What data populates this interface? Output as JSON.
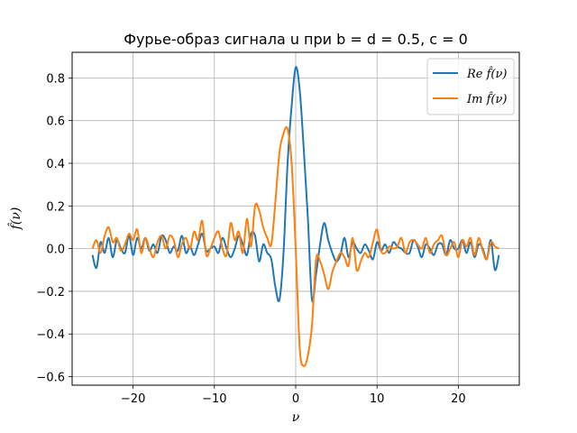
{
  "chart_data": {
    "type": "line",
    "title": "Фурье-образ сигнала u при b = d = 0.5, c = 0",
    "xlabel": "ν",
    "ylabel": "f̂(ν)",
    "xlim": [
      -27.5,
      27.5
    ],
    "ylim": [
      -0.64,
      0.92
    ],
    "xticks": [
      -20,
      -10,
      0,
      10,
      20
    ],
    "xtick_labels": [
      "−20",
      "−10",
      "0",
      "10",
      "20"
    ],
    "yticks": [
      -0.6,
      -0.4,
      -0.2,
      0.0,
      0.2,
      0.4,
      0.6,
      0.8
    ],
    "ytick_labels": [
      "−0.6",
      "−0.4",
      "−0.2",
      "0.0",
      "0.2",
      "0.4",
      "0.6",
      "0.8"
    ],
    "grid": true,
    "legend_position": "top-right",
    "series": [
      {
        "name": "Re f̂(ν)",
        "color": "#1f77b4",
        "x": [
          -25,
          -24.5,
          -24,
          -23.5,
          -23,
          -22.5,
          -22,
          -21.5,
          -21,
          -20.5,
          -20,
          -19.5,
          -19,
          -18.5,
          -18,
          -17.5,
          -17,
          -16.5,
          -16,
          -15.5,
          -15,
          -14.5,
          -14,
          -13.5,
          -13,
          -12.5,
          -12,
          -11.5,
          -11,
          -10.5,
          -10,
          -9.5,
          -9,
          -8.5,
          -8,
          -7.5,
          -7,
          -6.5,
          -6,
          -5.5,
          -5,
          -4.5,
          -4,
          -3.5,
          -3,
          -2.5,
          -2,
          -1.5,
          -1,
          -0.5,
          0,
          0.5,
          1,
          1.5,
          2,
          2.5,
          3,
          3.5,
          4,
          4.5,
          5,
          5.5,
          6,
          6.5,
          7,
          7.5,
          8,
          8.5,
          9,
          9.5,
          10,
          10.5,
          11,
          11.5,
          12,
          12.5,
          13,
          13.5,
          14,
          14.5,
          15,
          15.5,
          16,
          16.5,
          17,
          17.5,
          18,
          18.5,
          19,
          19.5,
          20,
          20.5,
          21,
          21.5,
          22,
          22.5,
          23,
          23.5,
          24,
          24.5,
          25
        ],
        "values": [
          -0.03,
          -0.09,
          0.03,
          -0.02,
          0.05,
          -0.04,
          0.04,
          0.0,
          -0.02,
          0.06,
          -0.03,
          0.05,
          0.0,
          0.05,
          -0.01,
          0.02,
          -0.02,
          0.06,
          0.04,
          -0.02,
          0.01,
          -0.01,
          0.06,
          -0.02,
          0.01,
          -0.03,
          0.02,
          0.07,
          -0.01,
          0.0,
          0.01,
          -0.02,
          0.05,
          0.0,
          -0.04,
          0.0,
          0.06,
          0.02,
          -0.03,
          0.07,
          0.06,
          -0.06,
          0.02,
          -0.02,
          -0.05,
          -0.18,
          -0.24,
          -0.02,
          0.4,
          0.67,
          0.85,
          0.74,
          0.46,
          0.14,
          -0.24,
          -0.12,
          0.02,
          0.12,
          0.04,
          -0.02,
          -0.06,
          -0.03,
          0.05,
          -0.04,
          0.03,
          0.0,
          -0.02,
          0.02,
          -0.01,
          -0.05,
          0.03,
          -0.01,
          0.02,
          -0.02,
          0.03,
          0.01,
          0.0,
          -0.02,
          -0.02,
          0.04,
          0.01,
          -0.04,
          0.02,
          0.0,
          -0.03,
          0.02,
          0.02,
          -0.03,
          0.04,
          0.0,
          0.0,
          0.04,
          -0.02,
          0.03,
          -0.04,
          0.02,
          0.0,
          -0.05,
          0.04,
          -0.1,
          -0.03
        ]
      },
      {
        "name": "Im f̂(ν)",
        "color": "#ff7f0e",
        "x": [
          -25,
          -24.5,
          -24,
          -23.5,
          -23,
          -22.5,
          -22,
          -21.5,
          -21,
          -20.5,
          -20,
          -19.5,
          -19,
          -18.5,
          -18,
          -17.5,
          -17,
          -16.5,
          -16,
          -15.5,
          -15,
          -14.5,
          -14,
          -13.5,
          -13,
          -12.5,
          -12,
          -11.5,
          -11,
          -10.5,
          -10,
          -9.5,
          -9,
          -8.5,
          -8,
          -7.5,
          -7,
          -6.5,
          -6,
          -5.5,
          -5,
          -4.5,
          -4,
          -3.5,
          -3,
          -2.5,
          -2,
          -1.5,
          -1,
          -0.5,
          0,
          0.5,
          1,
          1.5,
          2,
          2.5,
          3,
          3.5,
          4,
          4.5,
          5,
          5.5,
          6,
          6.5,
          7,
          7.5,
          8,
          8.5,
          9,
          9.5,
          10,
          10.5,
          11,
          11.5,
          12,
          12.5,
          13,
          13.5,
          14,
          14.5,
          15,
          15.5,
          16,
          16.5,
          17,
          17.5,
          18,
          18.5,
          19,
          19.5,
          20,
          20.5,
          21,
          21.5,
          22,
          22.5,
          23,
          23.5,
          24,
          24.5,
          25
        ],
        "values": [
          0.0,
          0.04,
          -0.02,
          0.06,
          0.1,
          0.03,
          0.05,
          -0.01,
          0.02,
          0.07,
          0.04,
          0.09,
          -0.02,
          0.05,
          0.0,
          -0.04,
          0.03,
          0.06,
          0.0,
          0.06,
          0.04,
          -0.04,
          0.02,
          0.05,
          0.0,
          0.08,
          0.04,
          0.13,
          -0.03,
          0.0,
          0.05,
          0.08,
          0.0,
          -0.03,
          0.12,
          0.04,
          0.08,
          -0.02,
          0.14,
          0.01,
          0.2,
          0.18,
          0.1,
          0.05,
          0.02,
          0.22,
          0.45,
          0.54,
          0.56,
          0.4,
          0.0,
          -0.47,
          -0.55,
          -0.5,
          -0.36,
          -0.05,
          -0.06,
          -0.12,
          -0.19,
          -0.11,
          -0.06,
          -0.02,
          -0.04,
          -0.08,
          0.05,
          -0.1,
          -0.06,
          -0.02,
          -0.04,
          0.03,
          0.09,
          -0.01,
          -0.02,
          0.01,
          0.0,
          0.01,
          0.05,
          -0.02,
          0.03,
          0.04,
          0.02,
          0.0,
          0.05,
          -0.02,
          0.02,
          0.04,
          0.06,
          -0.03,
          0.0,
          0.03,
          -0.04,
          0.04,
          0.01,
          0.05,
          -0.03,
          0.05,
          -0.01,
          -0.05,
          0.03,
          0.01,
          0.0
        ]
      }
    ]
  }
}
